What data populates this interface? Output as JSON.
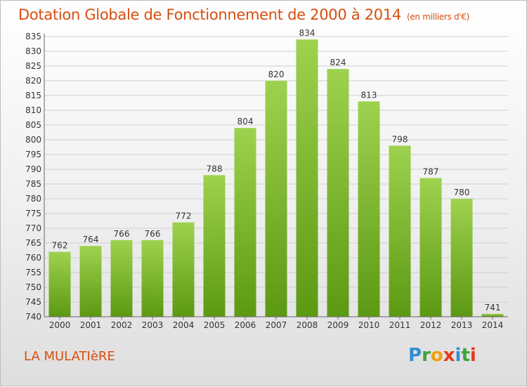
{
  "chart_data": {
    "type": "bar",
    "title": "Dotation Globale de Fonctionnement de 2000 à 2014",
    "subtitle": "(en milliers d'€)",
    "categories": [
      "2000",
      "2001",
      "2002",
      "2003",
      "2004",
      "2005",
      "2006",
      "2007",
      "2008",
      "2009",
      "2010",
      "2011",
      "2012",
      "2013",
      "2014"
    ],
    "values": [
      762,
      764,
      766,
      766,
      772,
      788,
      804,
      820,
      834,
      824,
      813,
      798,
      787,
      780,
      741
    ],
    "ylim": [
      740,
      835
    ],
    "yticks": [
      740,
      745,
      750,
      755,
      760,
      765,
      770,
      775,
      780,
      785,
      790,
      795,
      800,
      805,
      810,
      815,
      820,
      825,
      830,
      835
    ],
    "grid": true,
    "colors": {
      "bar_top": "#9ed24e",
      "bar_bottom": "#5c9912",
      "title": "#d64f0f",
      "grid": "#cfcfcf"
    }
  },
  "footer": {
    "commune": "LA MULATIèRE"
  },
  "logo": {
    "letters": [
      "P",
      "r",
      "o",
      "x",
      "i",
      "t",
      "i"
    ],
    "colors": [
      "#2f8fd6",
      "#3aa63a",
      "#f0a10b",
      "#e43a1d",
      "#2f8fd6",
      "#3aa63a",
      "#e43a1d"
    ]
  }
}
